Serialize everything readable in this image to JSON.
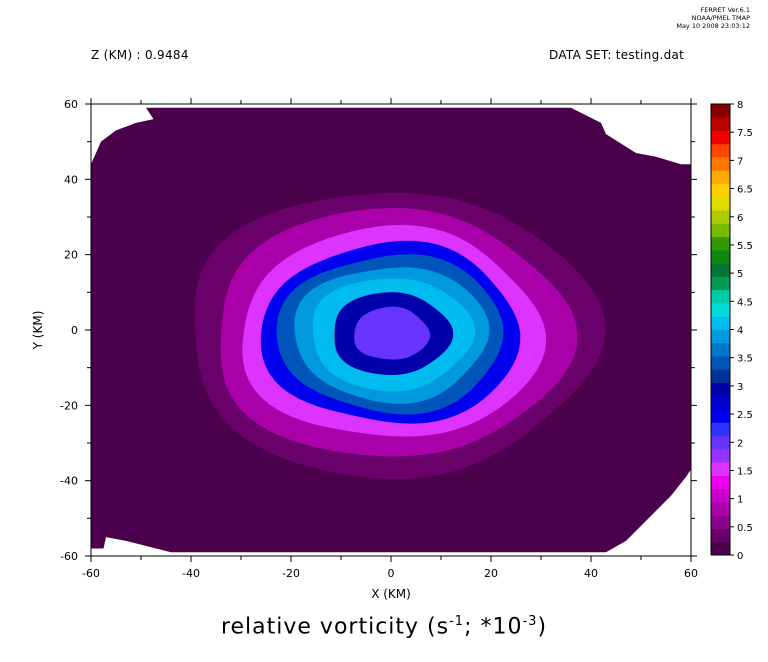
{
  "header": {
    "ferret_version": "FERRET  Ver.6.1",
    "ferret_org": "NOAA/PMEL TMAP",
    "ferret_date": "May 10 2008 23:03:12",
    "z_label": "Z (KM) : 0.9484",
    "dataset_label": "DATA SET: testing.dat"
  },
  "caption": {
    "text": "relative vorticity (s",
    "exp1": "-1",
    "mid": "; *10",
    "exp2": "-3",
    "end": ")"
  },
  "chart_data": {
    "type": "heatmap",
    "title": "relative vorticity (s-1; *10-3)",
    "xlabel": "X (KM)",
    "ylabel": "Y (KM)",
    "xlim": [
      -60,
      60
    ],
    "ylim": [
      -60,
      60
    ],
    "x_ticks": [
      -60,
      -40,
      -20,
      0,
      20,
      40,
      60
    ],
    "y_ticks": [
      -60,
      -40,
      -20,
      0,
      20,
      40,
      60
    ],
    "contour_levels": [
      0,
      0.25,
      0.5,
      0.75,
      1,
      1.25,
      1.5,
      1.75,
      2,
      2.25,
      2.5,
      2.75,
      3,
      3.25,
      3.5,
      3.75,
      4,
      4.25,
      4.5,
      4.75,
      5,
      5.25,
      5.5,
      5.75,
      6,
      6.25,
      6.5,
      6.75,
      7,
      7.25,
      7.5,
      7.75,
      8
    ],
    "colorbar_labels": [
      "8",
      "7.5",
      "7",
      "6.5",
      "6",
      "5.5",
      "5",
      "4.5",
      "4",
      "3.5",
      "3",
      "2.5",
      "2",
      "1.5",
      "1",
      "0.5",
      "0"
    ],
    "colors": [
      "#4a004a",
      "#6a006a",
      "#8a008a",
      "#aa00aa",
      "#cc00cc",
      "#ee00ee",
      "#dd33ff",
      "#9933ff",
      "#6633ff",
      "#3333ff",
      "#0000ee",
      "#0000cc",
      "#0000aa",
      "#003399",
      "#0055bb",
      "#0077cc",
      "#0099dd",
      "#00bbee",
      "#00dddd",
      "#00ccaa",
      "#009955",
      "#007733",
      "#118811",
      "#339900",
      "#77bb00",
      "#aacc00",
      "#dddd00",
      "#ffcc00",
      "#ffaa00",
      "#ff7700",
      "#ff4400",
      "#ee0000",
      "#bb0000",
      "#880000"
    ],
    "field": {
      "center_x": 0,
      "center_y": -1,
      "center_value": 2.2,
      "rings": [
        {
          "radius_km": 0,
          "value": 2.2
        },
        {
          "radius_km": 7,
          "value": 2.1
        },
        {
          "radius_km": 11,
          "value": 3.0
        },
        {
          "radius_km": 15,
          "value": 4.3
        },
        {
          "radius_km": 18,
          "value": 4.0
        },
        {
          "radius_km": 21,
          "value": 3.6
        },
        {
          "radius_km": 24,
          "value": 2.6
        },
        {
          "radius_km": 28,
          "value": 1.6
        },
        {
          "radius_km": 33,
          "value": 0.8
        },
        {
          "radius_km": 38,
          "value": 0.4
        },
        {
          "radius_km": 42,
          "value": 0.1
        }
      ],
      "background_value": 0
    }
  }
}
